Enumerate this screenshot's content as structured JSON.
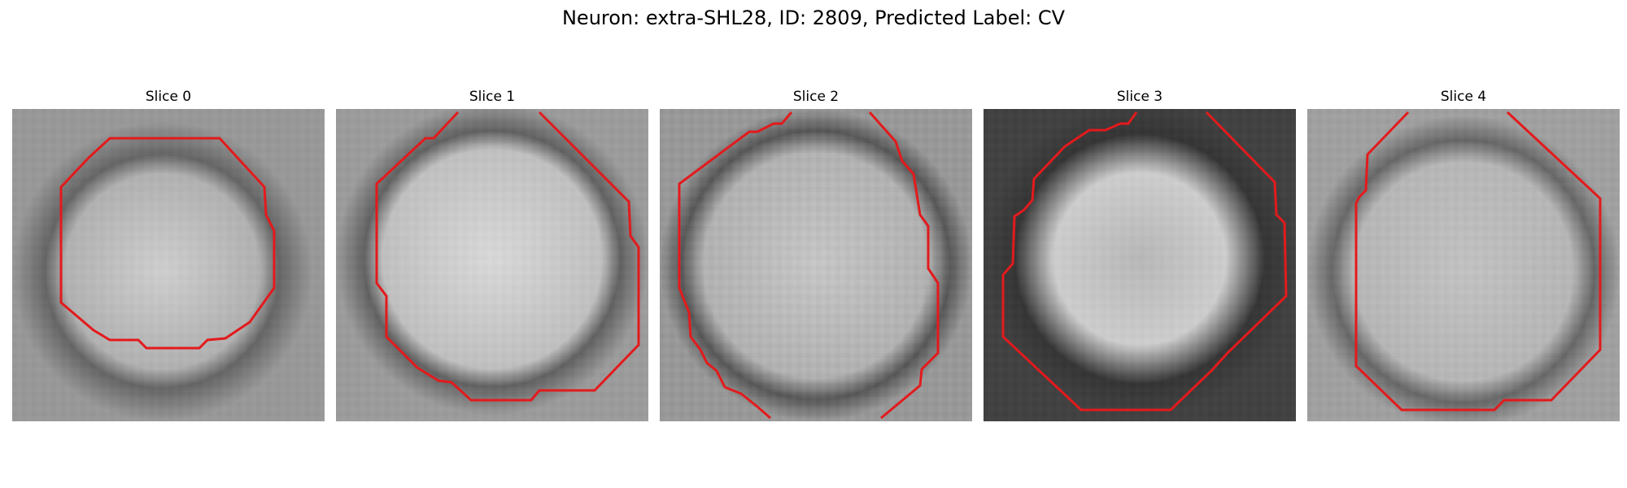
{
  "figure": {
    "title": "Neuron: extra-SHL28, ID: 2809, Predicted Label: CV"
  },
  "colors": {
    "contour": "#e31a1c",
    "background": "#ffffff"
  },
  "panels": [
    {
      "title": "Slice 0"
    },
    {
      "title": "Slice 1"
    },
    {
      "title": "Slice 2"
    },
    {
      "title": "Slice 3"
    },
    {
      "title": "Slice 4"
    }
  ]
}
